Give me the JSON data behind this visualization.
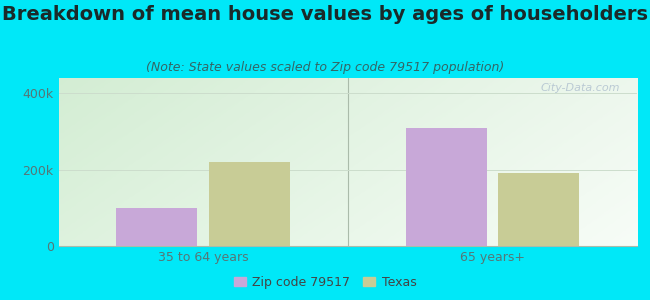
{
  "title": "Breakdown of mean house values by ages of householders",
  "subtitle": "(Note: State values scaled to Zip code 79517 population)",
  "categories": [
    "35 to 64 years",
    "65 years+"
  ],
  "zip_values": [
    100000,
    310000
  ],
  "texas_values": [
    220000,
    190000
  ],
  "zip_color": "#c8a8d8",
  "texas_color": "#c8cc96",
  "background_outer": "#00e8f8",
  "bar_width": 0.28,
  "ylim": [
    0,
    440000
  ],
  "yticks": [
    0,
    200000,
    400000
  ],
  "legend_labels": [
    "Zip code 79517",
    "Texas"
  ],
  "watermark": "City-Data.com",
  "title_fontsize": 14,
  "subtitle_fontsize": 9,
  "tick_fontsize": 9,
  "legend_fontsize": 9,
  "title_color": "#1a2a2a",
  "subtitle_color": "#336666",
  "tick_color": "#557777",
  "legend_color": "#444444",
  "grid_color": "#ccddcc",
  "separator_color": "#aabbaa"
}
